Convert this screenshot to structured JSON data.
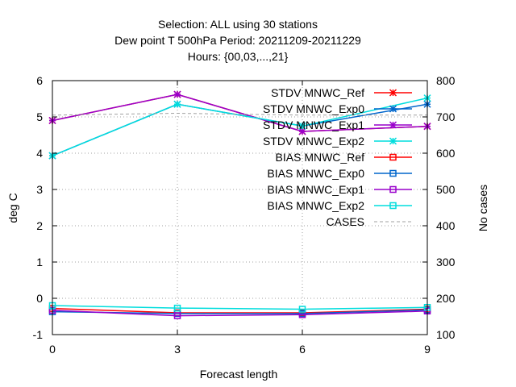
{
  "chart_data": {
    "type": "line",
    "title_lines": [
      "Selection: ALL using    30 stations",
      "Dew point T 500hPa   Period: 20211209-20211229",
      "Hours: {00,03,...,21}"
    ],
    "xlabel": "Forecast length",
    "ylabel": "deg C",
    "y2label": "No cases",
    "x": [
      0,
      3,
      6,
      9
    ],
    "xlim": [
      0,
      9
    ],
    "ylim": [
      -1,
      6
    ],
    "y2lim": [
      100,
      800
    ],
    "x_ticks": [
      0,
      3,
      6,
      9
    ],
    "y_ticks": [
      -1,
      0,
      1,
      2,
      3,
      4,
      5,
      6
    ],
    "y2_ticks": [
      100,
      200,
      300,
      400,
      500,
      600,
      700,
      800
    ],
    "grid": true,
    "legend_position": "top-right",
    "series": [
      {
        "name": "STDV MNWC_Ref",
        "axis": "y",
        "marker": "star",
        "dash": "solid",
        "color": "#ff0000",
        "values": [
          4.9,
          5.62,
          4.6,
          4.74
        ]
      },
      {
        "name": "STDV MNWC_Exp0",
        "axis": "y",
        "marker": "star",
        "dash": "solid",
        "color": "#0066cc",
        "values": [
          3.93,
          5.35,
          4.75,
          5.35
        ]
      },
      {
        "name": "STDV MNWC_Exp1",
        "axis": "y",
        "marker": "star",
        "dash": "solid",
        "color": "#9900cc",
        "values": [
          4.9,
          5.62,
          4.6,
          4.74
        ]
      },
      {
        "name": "STDV MNWC_Exp2",
        "axis": "y",
        "marker": "star",
        "dash": "solid",
        "color": "#00dddd",
        "values": [
          3.93,
          5.35,
          4.75,
          5.52
        ]
      },
      {
        "name": "BIAS MNWC_Ref",
        "axis": "y",
        "marker": "square",
        "dash": "solid",
        "color": "#ff0000",
        "values": [
          -0.28,
          -0.4,
          -0.4,
          -0.3
        ]
      },
      {
        "name": "BIAS MNWC_Exp0",
        "axis": "y",
        "marker": "square",
        "dash": "solid",
        "color": "#0066cc",
        "values": [
          -0.37,
          -0.42,
          -0.42,
          -0.32
        ]
      },
      {
        "name": "BIAS MNWC_Exp1",
        "axis": "y",
        "marker": "square",
        "dash": "solid",
        "color": "#9900cc",
        "values": [
          -0.33,
          -0.48,
          -0.45,
          -0.35
        ]
      },
      {
        "name": "BIAS MNWC_Exp2",
        "axis": "y",
        "marker": "square",
        "dash": "solid",
        "color": "#00dddd",
        "values": [
          -0.2,
          -0.27,
          -0.3,
          -0.25
        ]
      },
      {
        "name": "CASES",
        "axis": "y2",
        "marker": "none",
        "dash": "dashed",
        "color": "#a0a0a0",
        "values": [
          705,
          710,
          705,
          705
        ]
      }
    ]
  }
}
